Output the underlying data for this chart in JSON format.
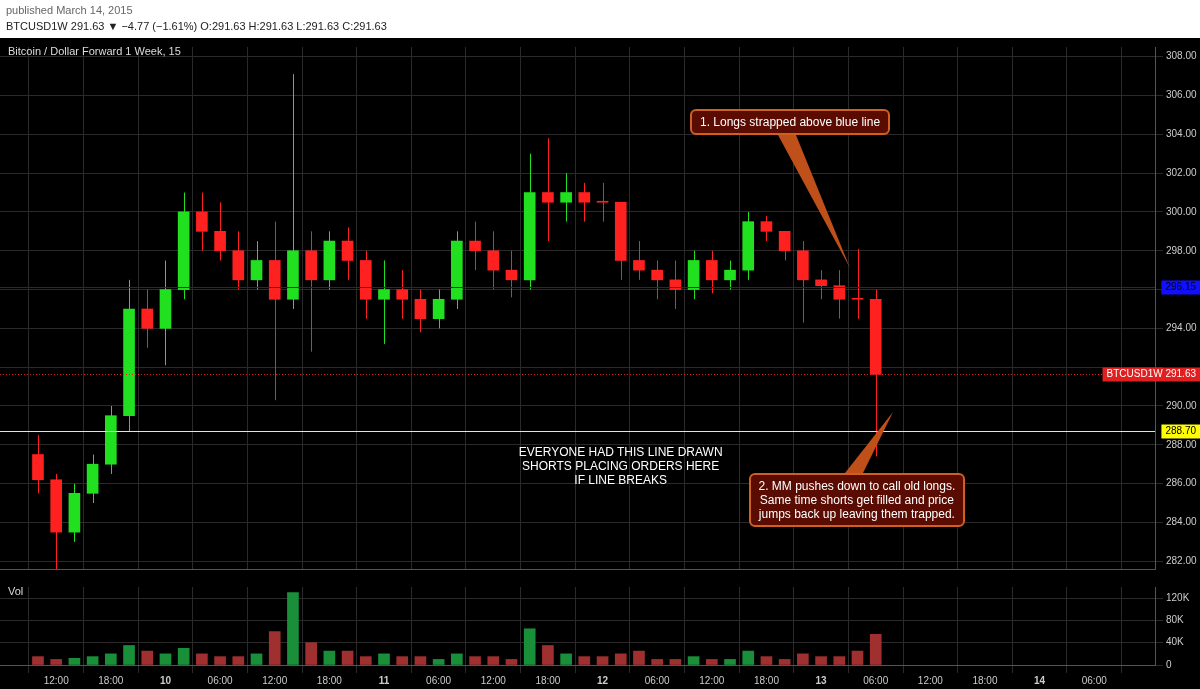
{
  "chart_data": [
    {
      "type": "candlestick",
      "title": "Bitcoin / Dollar Forward 1 Week, 15",
      "subtitle": "BTCUSD1W 291.63 ▼ −4.77 (−1.61%) O:291.63 H:291.63 L:291.63 C:291.63",
      "annotations": [
        "published March 14, 2015",
        "1. Longs strapped above blue line",
        "2. MM pushes down to call old longs.\nSame time shorts get filled and price\njumps back up leaving them trapped.",
        {
          "text": "EVERYONE HAD THIS LINE DRAWN\nSHORTS PLACING ORDERS HERE\nIF LINE BREAKS",
          "x": "2015-03-12T02:00",
          "y": 288.7
        }
      ],
      "x": [
        "2015-03-09T10:00",
        "2015-03-09T12:00",
        "2015-03-09T14:00",
        "2015-03-09T16:00",
        "2015-03-09T18:00",
        "2015-03-09T20:00",
        "2015-03-09T22:00",
        "2015-03-10T00:00",
        "2015-03-10T02:00",
        "2015-03-10T04:00",
        "2015-03-10T06:00",
        "2015-03-10T08:00",
        "2015-03-10T10:00",
        "2015-03-10T12:00",
        "2015-03-10T14:00",
        "2015-03-10T16:00",
        "2015-03-10T18:00",
        "2015-03-10T20:00",
        "2015-03-10T22:00",
        "2015-03-11T00:00",
        "2015-03-11T02:00",
        "2015-03-11T04:00",
        "2015-03-11T06:00",
        "2015-03-11T08:00",
        "2015-03-11T10:00",
        "2015-03-11T12:00",
        "2015-03-11T14:00",
        "2015-03-11T16:00",
        "2015-03-11T18:00",
        "2015-03-11T20:00",
        "2015-03-11T22:00",
        "2015-03-12T00:00",
        "2015-03-12T02:00",
        "2015-03-12T04:00",
        "2015-03-12T06:00",
        "2015-03-12T08:00",
        "2015-03-12T10:00",
        "2015-03-12T12:00",
        "2015-03-12T14:00",
        "2015-03-12T16:00",
        "2015-03-12T18:00",
        "2015-03-12T20:00",
        "2015-03-12T22:00",
        "2015-03-13T00:00",
        "2015-03-13T02:00",
        "2015-03-13T04:00",
        "2015-03-13T06:00"
      ],
      "ohlc": [
        [
          287.5,
          288.5,
          285.5,
          286.2
        ],
        [
          286.2,
          286.5,
          281.6,
          283.5
        ],
        [
          283.5,
          286,
          283,
          285.5
        ],
        [
          285.5,
          287.5,
          285,
          287
        ],
        [
          287,
          290,
          286.5,
          289.5
        ],
        [
          289.5,
          296.5,
          288.7,
          295
        ],
        [
          295,
          296,
          293,
          294
        ],
        [
          294,
          297.5,
          292.1,
          296
        ],
        [
          296,
          301,
          295.5,
          300
        ],
        [
          300,
          301,
          298,
          299
        ],
        [
          299,
          300.5,
          297.5,
          298
        ],
        [
          298,
          299,
          296,
          296.5
        ],
        [
          296.5,
          298.5,
          296,
          297.5
        ],
        [
          297.5,
          299.5,
          290.3,
          295.5
        ],
        [
          295.5,
          307.1,
          295,
          298
        ],
        [
          298,
          299,
          292.8,
          296.5
        ],
        [
          296.5,
          299,
          296,
          298.5
        ],
        [
          298.5,
          299.2,
          296.5,
          297.5
        ],
        [
          297.5,
          298,
          294.5,
          295.5
        ],
        [
          295.5,
          297.5,
          293.2,
          296
        ],
        [
          296,
          297,
          294.5,
          295.5
        ],
        [
          295.5,
          296,
          293.8,
          294.5
        ],
        [
          294.5,
          296,
          294,
          295.5
        ],
        [
          295.5,
          299,
          295,
          298.5
        ],
        [
          298.5,
          299.5,
          297,
          298
        ],
        [
          298,
          299,
          296,
          297
        ],
        [
          297,
          298,
          295.6,
          296.5
        ],
        [
          296.5,
          303,
          296,
          301
        ],
        [
          301,
          303.8,
          298.5,
          300.5
        ],
        [
          300.5,
          302,
          299.5,
          301
        ],
        [
          301,
          301.5,
          299.5,
          300.5
        ],
        [
          300.5,
          301.5,
          299.5,
          300.5
        ],
        [
          300.5,
          300.5,
          296.5,
          297.5
        ],
        [
          297.5,
          298.5,
          296.5,
          297
        ],
        [
          297,
          297.5,
          295.5,
          296.5
        ],
        [
          296.5,
          297.5,
          295,
          296
        ],
        [
          296,
          298,
          295.5,
          297.5
        ],
        [
          297.5,
          298,
          295.8,
          296.5
        ],
        [
          296.5,
          297.5,
          296,
          297
        ],
        [
          297,
          300,
          296.5,
          299.5
        ],
        [
          299.5,
          299.8,
          298.5,
          299
        ],
        [
          299,
          299,
          297.5,
          298
        ],
        [
          298,
          298.5,
          294.3,
          296.5
        ],
        [
          296.5,
          297,
          295.5,
          296.2
        ],
        [
          296.2,
          297,
          294.5,
          295.5
        ],
        [
          295.5,
          298.1,
          294.5,
          295.5
        ],
        [
          295.5,
          296,
          287.4,
          291.63
        ]
      ],
      "colors": [
        "#ff2020",
        "#ff2020",
        "#20e020",
        "#20e020",
        "#20e020",
        "#20e020",
        "#ff2020",
        "#20e020",
        "#20e020",
        "#ff2020",
        "#ff2020",
        "#ff2020",
        "#20e020",
        "#ff2020",
        "#20e020",
        "#ff2020",
        "#20e020",
        "#ff2020",
        "#ff2020",
        "#20e020",
        "#ff2020",
        "#ff2020",
        "#20e020",
        "#20e020",
        "#ff2020",
        "#ff2020",
        "#ff2020",
        "#20e020",
        "#ff2020",
        "#20e020",
        "#ff2020",
        "#ff2020",
        "#ff2020",
        "#ff2020",
        "#ff2020",
        "#ff2020",
        "#20e020",
        "#ff2020",
        "#20e020",
        "#20e020",
        "#ff2020",
        "#ff2020",
        "#ff2020",
        "#ff2020",
        "#ff2020",
        "#ff2020",
        "#ff2020"
      ],
      "xlim": [
        "2015-03-09T09:00",
        "2015-03-14T09:30"
      ],
      "xticks": [
        {
          "value": "2015-03-09T12:00",
          "label": null
        },
        {
          "value": "2015-03-09T18:00",
          "label": null
        },
        {
          "value": "2015-03-10",
          "label": null
        },
        {
          "value": "2015-03-10T06:00",
          "label": null
        },
        {
          "value": "2015-03-10T12:00",
          "label": null
        },
        {
          "value": "2015-03-10T18:00",
          "label": null
        },
        {
          "value": "2015-03-11",
          "label": null
        },
        {
          "value": "2015-03-11T06:00",
          "label": null
        },
        {
          "value": "2015-03-11T12:00",
          "label": null
        },
        {
          "value": "2015-03-11T18:00",
          "label": null
        },
        {
          "value": "2015-03-12",
          "label": null
        },
        {
          "value": "2015-03-12T06:00",
          "label": null
        },
        {
          "value": "2015-03-12T12:00",
          "label": null
        },
        {
          "value": "2015-03-12T18:00",
          "label": null
        },
        {
          "value": "2015-03-13",
          "label": null
        },
        {
          "value": "2015-03-13T06:00",
          "label": null
        },
        {
          "value": "2015-03-13T12:00",
          "label": null
        },
        {
          "value": "2015-03-13T18:00",
          "label": null
        },
        {
          "value": "2015-03-14",
          "label": null
        },
        {
          "value": "2015-03-14T06:00",
          "label": null
        }
      ],
      "ylim": [
        281.6,
        308.5
      ],
      "yticks": [
        {
          "value": 282,
          "label": "282.00"
        },
        {
          "value": 284,
          "label": "284.00"
        },
        {
          "value": 286,
          "label": "286.00"
        },
        {
          "value": 288,
          "label": "288.00"
        },
        {
          "value": 290,
          "label": "290.00"
        },
        {
          "value": 292,
          "label": null
        },
        {
          "value": 294,
          "label": "294.00"
        },
        {
          "value": 296,
          "label": null
        },
        {
          "value": 298,
          "label": "298.00"
        },
        {
          "value": 300,
          "label": "300.00"
        },
        {
          "value": 302,
          "label": "302.00"
        },
        {
          "value": 304,
          "label": "304.00"
        },
        {
          "value": 306,
          "label": "306.00"
        },
        {
          "value": 308,
          "label": "308.00"
        }
      ],
      "ref_lines": [
        {
          "axis": "y",
          "value": 296.15,
          "label": "296.15",
          "color": "#1010ff"
        },
        {
          "axis": "y",
          "value": 288.7,
          "label": "288.70",
          "color": "#ffff00"
        },
        {
          "axis": "y",
          "value": 291.63,
          "label": "BTCUSD1W 291.63",
          "color": "#e02020",
          "line_style": "dotted"
        }
      ],
      "grid": true,
      "legend": false,
      "tick_labels": "y"
    },
    {
      "type": "bar",
      "title": "Vol",
      "x": [
        "2015-03-09T10:00",
        "2015-03-09T12:00",
        "2015-03-09T14:00",
        "2015-03-09T16:00",
        "2015-03-09T18:00",
        "2015-03-09T20:00",
        "2015-03-09T22:00",
        "2015-03-10T00:00",
        "2015-03-10T02:00",
        "2015-03-10T04:00",
        "2015-03-10T06:00",
        "2015-03-10T08:00",
        "2015-03-10T10:00",
        "2015-03-10T12:00",
        "2015-03-10T14:00",
        "2015-03-10T16:00",
        "2015-03-10T18:00",
        "2015-03-10T20:00",
        "2015-03-10T22:00",
        "2015-03-11T00:00",
        "2015-03-11T02:00",
        "2015-03-11T04:00",
        "2015-03-11T06:00",
        "2015-03-11T08:00",
        "2015-03-11T10:00",
        "2015-03-11T12:00",
        "2015-03-11T14:00",
        "2015-03-11T16:00",
        "2015-03-11T18:00",
        "2015-03-11T20:00",
        "2015-03-11T22:00",
        "2015-03-12T00:00",
        "2015-03-12T02:00",
        "2015-03-12T04:00",
        "2015-03-12T06:00",
        "2015-03-12T08:00",
        "2015-03-12T10:00",
        "2015-03-12T12:00",
        "2015-03-12T14:00",
        "2015-03-12T16:00",
        "2015-03-12T18:00",
        "2015-03-12T20:00",
        "2015-03-12T22:00",
        "2015-03-13T00:00",
        "2015-03-13T02:00",
        "2015-03-13T04:00",
        "2015-03-13T06:00"
      ],
      "values": [
        15000,
        10000,
        12000,
        15000,
        20000,
        35000,
        25000,
        20000,
        30000,
        20000,
        15000,
        15000,
        20000,
        60000,
        130000,
        40000,
        25000,
        25000,
        15000,
        20000,
        15000,
        15000,
        10000,
        20000,
        15000,
        15000,
        10000,
        65000,
        35000,
        20000,
        15000,
        15000,
        20000,
        25000,
        10000,
        10000,
        15000,
        10000,
        10000,
        25000,
        15000,
        10000,
        20000,
        15000,
        15000,
        25000,
        55000
      ],
      "colors": [
        "#a03030",
        "#a03030",
        "#1a8f3a",
        "#1a8f3a",
        "#1a8f3a",
        "#1a8f3a",
        "#a03030",
        "#1a8f3a",
        "#1a8f3a",
        "#a03030",
        "#a03030",
        "#a03030",
        "#1a8f3a",
        "#a03030",
        "#1a8f3a",
        "#a03030",
        "#1a8f3a",
        "#a03030",
        "#a03030",
        "#1a8f3a",
        "#a03030",
        "#a03030",
        "#1a8f3a",
        "#1a8f3a",
        "#a03030",
        "#a03030",
        "#a03030",
        "#1a8f3a",
        "#a03030",
        "#1a8f3a",
        "#a03030",
        "#a03030",
        "#a03030",
        "#a03030",
        "#a03030",
        "#a03030",
        "#1a8f3a",
        "#a03030",
        "#1a8f3a",
        "#1a8f3a",
        "#a03030",
        "#a03030",
        "#a03030",
        "#a03030",
        "#a03030",
        "#a03030",
        "#a03030"
      ],
      "xlim": [
        "2015-03-09T09:00",
        "2015-03-14T09:30"
      ],
      "xticks": [
        {
          "value": "2015-03-09T12:00",
          "label": "12:00"
        },
        {
          "value": "2015-03-09T18:00",
          "label": "18:00"
        },
        {
          "value": "2015-03-10",
          "label": "10"
        },
        {
          "value": "2015-03-10T06:00",
          "label": "06:00"
        },
        {
          "value": "2015-03-10T12:00",
          "label": "12:00"
        },
        {
          "value": "2015-03-10T18:00",
          "label": "18:00"
        },
        {
          "value": "2015-03-11",
          "label": "11"
        },
        {
          "value": "2015-03-11T06:00",
          "label": "06:00"
        },
        {
          "value": "2015-03-11T12:00",
          "label": "12:00"
        },
        {
          "value": "2015-03-11T18:00",
          "label": "18:00"
        },
        {
          "value": "2015-03-12",
          "label": "12"
        },
        {
          "value": "2015-03-12T06:00",
          "label": "06:00"
        },
        {
          "value": "2015-03-12T12:00",
          "label": "12:00"
        },
        {
          "value": "2015-03-12T18:00",
          "label": "18:00"
        },
        {
          "value": "2015-03-13",
          "label": "13"
        },
        {
          "value": "2015-03-13T06:00",
          "label": "06:00"
        },
        {
          "value": "2015-03-13T12:00",
          "label": "12:00"
        },
        {
          "value": "2015-03-13T18:00",
          "label": "18:00"
        },
        {
          "value": "2015-03-14",
          "label": "14"
        },
        {
          "value": "2015-03-14T06:00",
          "label": "06:00"
        }
      ],
      "ylim": [
        0,
        140000
      ],
      "yticks": [
        0,
        {
          "value": 40000,
          "label": "40K"
        },
        {
          "value": 80000,
          "label": "80K"
        },
        {
          "value": 120000,
          "label": "120K"
        }
      ],
      "grid": true,
      "legend": false
    }
  ]
}
